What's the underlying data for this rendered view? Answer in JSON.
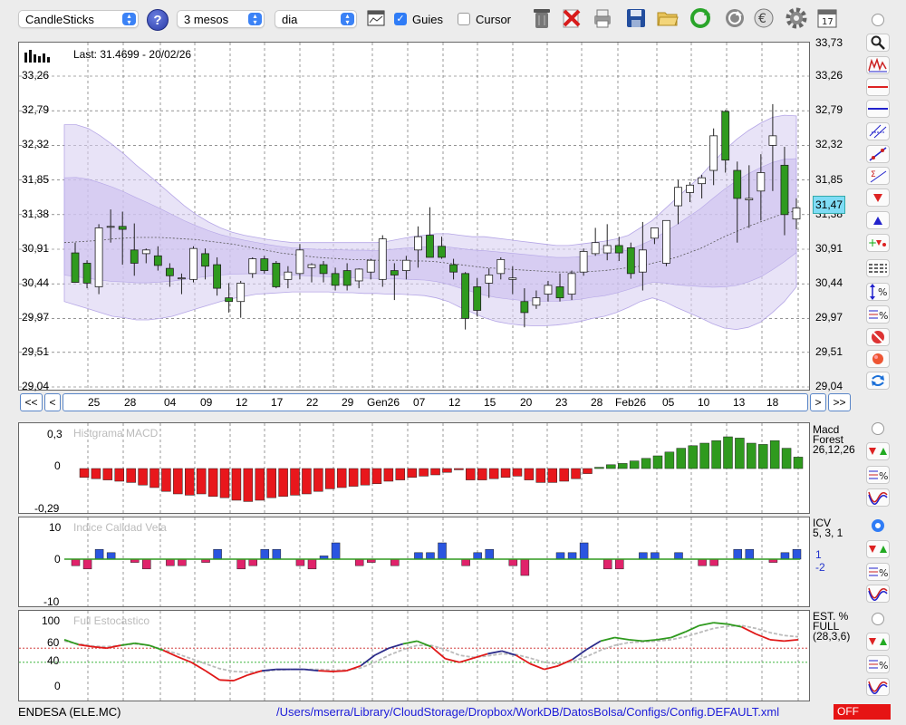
{
  "toolbar": {
    "chart_type": "CandleSticks",
    "period": "3 mesos",
    "interval": "dia",
    "guides_label": "Guies",
    "guides_checked": true,
    "cursor_label": "Cursor",
    "cursor_checked": false,
    "calendar_day": "17",
    "icons": [
      "help-icon",
      "chart-window-icon",
      "trash-icon",
      "delete-icon",
      "print-icon",
      "save-icon",
      "open-folder-icon",
      "refresh-icon",
      "sync-icon",
      "euro-icon",
      "settings-icon",
      "calendar-icon"
    ]
  },
  "main_chart": {
    "last_label": "Last: 31.4699 - 20/02/26",
    "current_price": "31,47",
    "y_ticks": [
      "33,73",
      "33,26",
      "32,79",
      "32,32",
      "31,85",
      "31,38",
      "30,91",
      "30,44",
      "29,97",
      "29,51",
      "29,04"
    ],
    "x_ticks": [
      "25",
      "28",
      "04",
      "09",
      "12",
      "17",
      "22",
      "29",
      "Gen26",
      "07",
      "12",
      "15",
      "20",
      "23",
      "28",
      "Feb26",
      "05",
      "10",
      "13",
      "18"
    ],
    "nav": {
      "first": "<<",
      "prev": "<",
      "next": ">",
      "last": ">>"
    }
  },
  "macd_panel": {
    "title": "Histgrama MACD",
    "y_ticks": [
      "0,3",
      "0",
      "-0,29"
    ],
    "label_lines": [
      "Macd",
      "Forest",
      "26,12,26"
    ]
  },
  "icv_panel": {
    "title": "Indice Calidad Vela",
    "y_ticks": [
      "10",
      "0",
      "-10"
    ],
    "label_lines": [
      "ICV",
      "5, 3, 1"
    ],
    "value_up": "1",
    "value_down": "-2"
  },
  "stoch_panel": {
    "title": "Full Estocastico",
    "y_ticks": [
      "100",
      "60",
      "40",
      "0"
    ],
    "label_lines": [
      "EST. %",
      "FULL",
      "(28,3,6)"
    ]
  },
  "footer": {
    "ticker": "ENDESA (ELE.MC)",
    "config_path": "/Users/mserra/Library/CloudStorage/Dropbox/WorkDB/DatosBolsa/Configs/Config.DEFAULT.xml",
    "status": "OFF"
  },
  "chart_data": [
    {
      "type": "candlestick",
      "title": "",
      "x_labels": [
        "25",
        "28",
        "04",
        "09",
        "12",
        "17",
        "22",
        "29",
        "Gen26",
        "07",
        "12",
        "15",
        "20",
        "23",
        "28",
        "Feb26",
        "05",
        "10",
        "13",
        "18"
      ],
      "ylim": [
        29.04,
        33.73
      ],
      "y_ticks": [
        33.26,
        32.79,
        32.32,
        31.85,
        31.38,
        30.91,
        30.44,
        29.97,
        29.51,
        29.04
      ],
      "candles": [
        {
          "o": 30.86,
          "h": 31.0,
          "l": 30.48,
          "c": 30.46
        },
        {
          "o": 30.72,
          "h": 30.76,
          "l": 30.38,
          "c": 30.45
        },
        {
          "o": 30.4,
          "h": 31.25,
          "l": 30.3,
          "c": 31.2
        },
        {
          "o": 31.22,
          "h": 31.45,
          "l": 31.0,
          "c": 31.22
        },
        {
          "o": 31.22,
          "h": 31.42,
          "l": 30.7,
          "c": 31.18
        },
        {
          "o": 30.9,
          "h": 31.26,
          "l": 30.55,
          "c": 30.72
        },
        {
          "o": 30.85,
          "h": 30.92,
          "l": 30.72,
          "c": 30.9
        },
        {
          "o": 30.82,
          "h": 30.95,
          "l": 30.62,
          "c": 30.69
        },
        {
          "o": 30.65,
          "h": 30.72,
          "l": 30.4,
          "c": 30.55
        },
        {
          "o": 30.52,
          "h": 30.58,
          "l": 30.3,
          "c": 30.52
        },
        {
          "o": 30.5,
          "h": 30.95,
          "l": 30.46,
          "c": 30.92
        },
        {
          "o": 30.85,
          "h": 30.92,
          "l": 30.5,
          "c": 30.68
        },
        {
          "o": 30.7,
          "h": 30.8,
          "l": 30.28,
          "c": 30.38
        },
        {
          "o": 30.25,
          "h": 30.45,
          "l": 30.05,
          "c": 30.2
        },
        {
          "o": 30.2,
          "h": 30.48,
          "l": 29.98,
          "c": 30.45
        },
        {
          "o": 30.58,
          "h": 30.8,
          "l": 30.52,
          "c": 30.78
        },
        {
          "o": 30.78,
          "h": 30.82,
          "l": 30.58,
          "c": 30.62
        },
        {
          "o": 30.72,
          "h": 30.75,
          "l": 30.38,
          "c": 30.4
        },
        {
          "o": 30.5,
          "h": 30.68,
          "l": 30.38,
          "c": 30.6
        },
        {
          "o": 30.58,
          "h": 30.98,
          "l": 30.5,
          "c": 30.9
        },
        {
          "o": 30.66,
          "h": 30.72,
          "l": 30.46,
          "c": 30.7
        },
        {
          "o": 30.7,
          "h": 30.75,
          "l": 30.46,
          "c": 30.58
        },
        {
          "o": 30.58,
          "h": 30.66,
          "l": 30.35,
          "c": 30.42
        },
        {
          "o": 30.62,
          "h": 30.72,
          "l": 30.35,
          "c": 30.42
        },
        {
          "o": 30.48,
          "h": 30.65,
          "l": 30.38,
          "c": 30.64
        },
        {
          "o": 30.6,
          "h": 30.78,
          "l": 30.5,
          "c": 30.76
        },
        {
          "o": 30.5,
          "h": 31.1,
          "l": 30.4,
          "c": 31.05
        },
        {
          "o": 30.62,
          "h": 30.72,
          "l": 30.22,
          "c": 30.56
        },
        {
          "o": 30.62,
          "h": 30.82,
          "l": 30.5,
          "c": 30.76
        },
        {
          "o": 30.9,
          "h": 31.22,
          "l": 30.66,
          "c": 31.08
        },
        {
          "o": 31.1,
          "h": 31.48,
          "l": 30.82,
          "c": 30.8
        },
        {
          "o": 30.95,
          "h": 31.08,
          "l": 30.78,
          "c": 30.8
        },
        {
          "o": 30.7,
          "h": 30.78,
          "l": 30.5,
          "c": 30.6
        },
        {
          "o": 30.58,
          "h": 30.6,
          "l": 29.82,
          "c": 29.97
        },
        {
          "o": 30.4,
          "h": 30.52,
          "l": 30.0,
          "c": 30.08
        },
        {
          "o": 30.45,
          "h": 30.65,
          "l": 30.25,
          "c": 30.56
        },
        {
          "o": 30.58,
          "h": 30.8,
          "l": 30.5,
          "c": 30.77
        },
        {
          "o": 30.5,
          "h": 30.68,
          "l": 30.3,
          "c": 30.52
        },
        {
          "o": 30.2,
          "h": 30.38,
          "l": 29.85,
          "c": 30.05
        },
        {
          "o": 30.15,
          "h": 30.35,
          "l": 30.1,
          "c": 30.25
        },
        {
          "o": 30.3,
          "h": 30.48,
          "l": 30.2,
          "c": 30.42
        },
        {
          "o": 30.4,
          "h": 30.58,
          "l": 30.2,
          "c": 30.25
        },
        {
          "o": 30.3,
          "h": 30.62,
          "l": 30.22,
          "c": 30.58
        },
        {
          "o": 30.6,
          "h": 30.92,
          "l": 30.55,
          "c": 30.88
        },
        {
          "o": 30.85,
          "h": 31.2,
          "l": 30.82,
          "c": 31.0
        },
        {
          "o": 30.86,
          "h": 31.25,
          "l": 30.76,
          "c": 30.96
        },
        {
          "o": 30.96,
          "h": 31.08,
          "l": 30.75,
          "c": 30.86
        },
        {
          "o": 30.93,
          "h": 31.0,
          "l": 30.51,
          "c": 30.58
        },
        {
          "o": 30.6,
          "h": 31.28,
          "l": 30.35,
          "c": 30.9
        },
        {
          "o": 31.06,
          "h": 31.2,
          "l": 30.98,
          "c": 31.2
        },
        {
          "o": 30.72,
          "h": 31.3,
          "l": 30.68,
          "c": 31.3
        },
        {
          "o": 31.5,
          "h": 31.85,
          "l": 31.25,
          "c": 31.75
        },
        {
          "o": 31.68,
          "h": 31.82,
          "l": 31.55,
          "c": 31.78
        },
        {
          "o": 31.8,
          "h": 31.92,
          "l": 31.6,
          "c": 31.88
        },
        {
          "o": 31.98,
          "h": 32.55,
          "l": 31.78,
          "c": 32.45
        },
        {
          "o": 32.78,
          "h": 32.8,
          "l": 31.95,
          "c": 32.12
        },
        {
          "o": 31.98,
          "h": 32.1,
          "l": 31.0,
          "c": 31.6
        },
        {
          "o": 31.58,
          "h": 32.05,
          "l": 31.2,
          "c": 31.6
        },
        {
          "o": 31.7,
          "h": 32.2,
          "l": 31.3,
          "c": 31.95
        },
        {
          "o": 32.32,
          "h": 32.88,
          "l": 31.7,
          "c": 32.45
        },
        {
          "o": 32.05,
          "h": 32.3,
          "l": 31.1,
          "c": 31.38
        },
        {
          "o": 31.32,
          "h": 31.6,
          "l": 31.18,
          "c": 31.47
        }
      ],
      "moving_average": [
        31.0,
        31.01,
        31.02,
        31.03,
        31.05,
        31.06,
        31.07,
        31.07,
        31.07,
        31.06,
        31.05,
        31.04,
        31.02,
        31.0,
        30.98,
        30.95,
        30.92,
        30.89,
        30.86,
        30.84,
        30.82,
        30.8,
        30.79,
        30.78,
        30.77,
        30.77,
        30.76,
        30.76,
        30.76,
        30.75,
        30.75,
        30.74,
        30.72,
        30.7,
        30.68,
        30.66,
        30.65,
        30.64,
        30.63,
        30.62,
        30.61,
        30.6,
        30.6,
        30.6,
        30.61,
        30.62,
        30.64,
        30.66,
        30.68,
        30.72,
        30.76,
        30.8,
        30.86,
        30.92,
        31.0,
        31.08,
        31.15,
        31.22,
        31.28,
        31.34,
        31.4,
        31.43
      ],
      "band_upper": [
        32.6,
        32.6,
        32.55,
        32.45,
        32.33,
        32.2,
        32.05,
        31.92,
        31.78,
        31.64,
        31.5,
        31.38,
        31.28,
        31.2,
        31.14,
        31.1,
        31.07,
        31.04,
        31.02,
        31.0,
        31.0,
        31.0,
        31.0,
        31.0,
        31.0,
        31.0,
        31.0,
        31.02,
        31.05,
        31.08,
        31.1,
        31.12,
        31.12,
        31.1,
        31.08,
        31.08,
        31.06,
        31.04,
        31.02,
        31.0,
        30.98,
        30.96,
        30.96,
        30.98,
        31.0,
        31.02,
        31.05,
        31.1,
        31.2,
        31.3,
        31.45,
        31.6,
        31.75,
        31.9,
        32.08,
        32.25,
        32.4,
        32.52,
        32.62,
        32.7,
        32.73,
        32.72
      ],
      "band_lower": [
        30.2,
        30.15,
        30.1,
        30.05,
        30.0,
        29.98,
        29.95,
        29.95,
        29.97,
        30.0,
        30.05,
        30.1,
        30.15,
        30.2,
        30.24,
        30.27,
        30.3,
        30.31,
        30.32,
        30.33,
        30.33,
        30.33,
        30.33,
        30.32,
        30.32,
        30.31,
        30.31,
        30.3,
        30.3,
        30.29,
        30.28,
        30.25,
        30.2,
        30.12,
        30.05,
        29.98,
        29.93,
        29.9,
        29.88,
        29.87,
        29.87,
        29.88,
        29.9,
        29.93,
        29.97,
        30.0,
        30.05,
        30.12,
        30.2,
        30.25,
        30.2,
        30.12,
        30.05,
        29.98,
        29.9,
        29.84,
        29.82,
        29.85,
        29.92,
        30.05,
        30.2,
        30.4
      ]
    },
    {
      "type": "bar",
      "title": "Histgrama MACD",
      "ylim": [
        -0.29,
        0.3
      ],
      "values": [
        -0.07,
        -0.08,
        -0.09,
        -0.1,
        -0.11,
        -0.13,
        -0.15,
        -0.18,
        -0.2,
        -0.21,
        -0.2,
        -0.22,
        -0.23,
        -0.25,
        -0.26,
        -0.25,
        -0.23,
        -0.22,
        -0.21,
        -0.2,
        -0.18,
        -0.16,
        -0.15,
        -0.14,
        -0.13,
        -0.12,
        -0.1,
        -0.09,
        -0.07,
        -0.06,
        -0.05,
        -0.03,
        -0.01,
        -0.09,
        -0.09,
        -0.08,
        -0.07,
        -0.06,
        -0.09,
        -0.11,
        -0.11,
        -0.1,
        -0.08,
        -0.04,
        0.01,
        0.03,
        0.04,
        0.06,
        0.08,
        0.1,
        0.13,
        0.16,
        0.18,
        0.2,
        0.22,
        0.25,
        0.24,
        0.2,
        0.19,
        0.22,
        0.16,
        0.09
      ]
    },
    {
      "type": "bar",
      "title": "Indice Calidad Vela",
      "ylim": [
        -10,
        10
      ],
      "values": [
        -2,
        -3,
        3,
        2,
        0,
        -1,
        -3,
        0,
        -2,
        -2,
        0,
        -1,
        3,
        0,
        -3,
        -2,
        3,
        3,
        0,
        -2,
        -3,
        1,
        5,
        0,
        -2,
        -1,
        0,
        -2,
        0,
        2,
        2,
        5,
        0,
        -2,
        2,
        3,
        0,
        -2,
        -5,
        0,
        0,
        2,
        2,
        5,
        0,
        -3,
        -3,
        0,
        2,
        2,
        0,
        2,
        0,
        -2,
        -2,
        0,
        3,
        3,
        0,
        -1,
        2,
        3
      ]
    },
    {
      "type": "line",
      "title": "Full Estocastico",
      "ylim": [
        0,
        100
      ],
      "series": [
        {
          "values": [
            72,
            65,
            62,
            60,
            64,
            67,
            64,
            57,
            48,
            40,
            28,
            15,
            14,
            22,
            28,
            30,
            30,
            30,
            28,
            27,
            28,
            35,
            50,
            60,
            66,
            70,
            62,
            45,
            40,
            46,
            52,
            56,
            50,
            38,
            30,
            35,
            44,
            58,
            70,
            75,
            72,
            70,
            72,
            75,
            83,
            92,
            96,
            94,
            90,
            80,
            72,
            70,
            72
          ]
        },
        {
          "values": [
            70,
            66,
            63,
            62,
            64,
            66,
            64,
            58,
            52,
            45,
            38,
            31,
            27,
            26,
            27,
            29,
            30,
            30,
            30,
            29,
            29,
            32,
            40,
            50,
            58,
            64,
            64,
            58,
            50,
            47,
            49,
            52,
            51,
            46,
            40,
            38,
            41,
            48,
            57,
            64,
            68,
            69,
            70,
            72,
            76,
            82,
            88,
            91,
            92,
            88,
            82,
            78,
            76
          ]
        }
      ]
    }
  ]
}
